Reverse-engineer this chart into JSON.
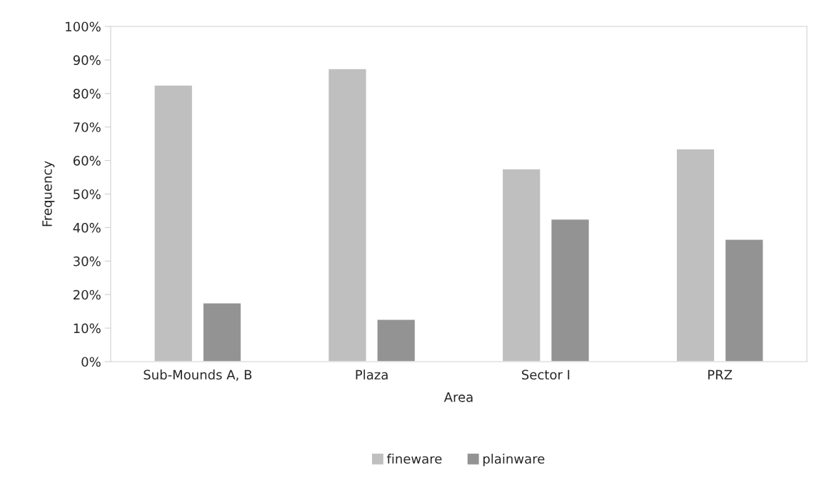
{
  "chart_data": {
    "type": "bar",
    "categories": [
      "Sub-Mounds A, B",
      "Plaza",
      "Sector I",
      "PRZ"
    ],
    "series": [
      {
        "name": "fineware",
        "color": "#bfbfbf",
        "values": [
          82.5,
          87.4,
          57.5,
          63.5
        ]
      },
      {
        "name": "plainware",
        "color": "#939393",
        "values": [
          17.5,
          12.6,
          42.5,
          36.5
        ]
      }
    ],
    "xlabel": "Area",
    "ylabel": "Frequency",
    "ylim": [
      0,
      100
    ],
    "yticks": [
      {
        "value": 0,
        "label": "0%"
      },
      {
        "value": 10,
        "label": "10%"
      },
      {
        "value": 20,
        "label": "20%"
      },
      {
        "value": 30,
        "label": "30%"
      },
      {
        "value": 40,
        "label": "40%"
      },
      {
        "value": 50,
        "label": "50%"
      },
      {
        "value": 60,
        "label": "60%"
      },
      {
        "value": 70,
        "label": "70%"
      },
      {
        "value": 80,
        "label": "80%"
      },
      {
        "value": 90,
        "label": "90%"
      },
      {
        "value": 100,
        "label": "100%"
      }
    ],
    "legend": "bottom"
  }
}
